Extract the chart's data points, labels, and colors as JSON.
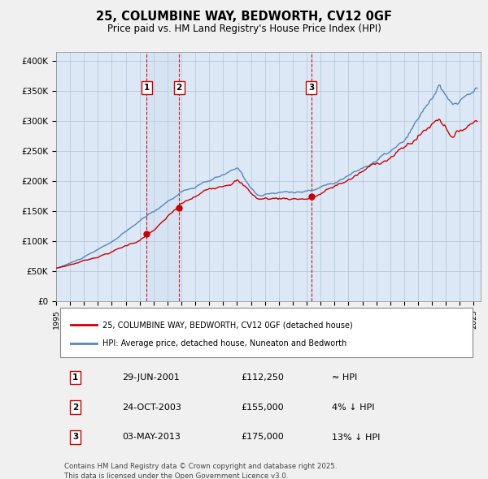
{
  "title": "25, COLUMBINE WAY, BEDWORTH, CV12 0GF",
  "subtitle": "Price paid vs. HM Land Registry's House Price Index (HPI)",
  "title_fontsize": 10.5,
  "subtitle_fontsize": 8.5,
  "background_color": "#f0f0f0",
  "plot_bg_color": "#dce8f5",
  "grid_color": "#b0c4d8",
  "red_line_color": "#cc0000",
  "blue_line_color": "#5588bb",
  "yticks": [
    0,
    50000,
    100000,
    150000,
    200000,
    250000,
    300000,
    350000,
    400000
  ],
  "ytick_labels": [
    "£0",
    "£50K",
    "£100K",
    "£150K",
    "£200K",
    "£250K",
    "£300K",
    "£350K",
    "£400K"
  ],
  "xmin": 1995.0,
  "xmax": 2025.5,
  "ymin": 0,
  "ymax": 415000,
  "marker1_year": 2001.5,
  "marker1_price": 112250,
  "marker2_year": 2003.83,
  "marker2_price": 155000,
  "marker3_year": 2013.33,
  "marker3_price": 175000,
  "shade_between_12": true,
  "legend_line1": "25, COLUMBINE WAY, BEDWORTH, CV12 0GF (detached house)",
  "legend_line2": "HPI: Average price, detached house, Nuneaton and Bedworth",
  "table_entries": [
    {
      "num": "1",
      "date": "29-JUN-2001",
      "amount": "£112,250",
      "note": "≈ HPI"
    },
    {
      "num": "2",
      "date": "24-OCT-2003",
      "amount": "£155,000",
      "note": "4% ↓ HPI"
    },
    {
      "num": "3",
      "date": "03-MAY-2013",
      "amount": "£175,000",
      "note": "13% ↓ HPI"
    }
  ],
  "footnote": "Contains HM Land Registry data © Crown copyright and database right 2025.\nThis data is licensed under the Open Government Licence v3.0."
}
